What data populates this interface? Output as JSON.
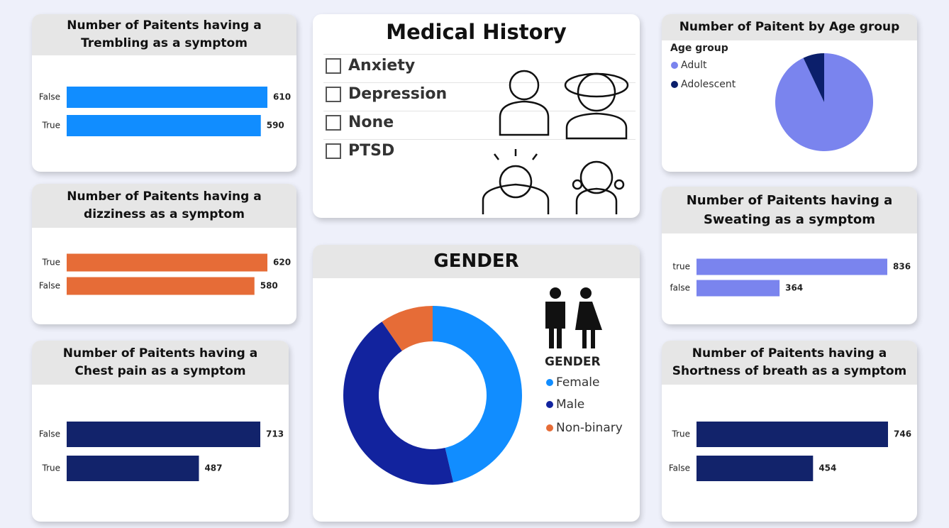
{
  "slicer": {
    "title": "Medical History",
    "items": [
      "Anxiety",
      "Depression",
      "None",
      "PTSD"
    ]
  },
  "chart_data": [
    {
      "type": "bar",
      "title": "Number of Paitents having a Trembling as a symptom",
      "categories": [
        "False",
        "True"
      ],
      "values": [
        610,
        590
      ],
      "color": "#118DFF"
    },
    {
      "type": "bar",
      "title": "Number of Paitents having a dizziness as a symptom",
      "categories": [
        "True",
        "False"
      ],
      "values": [
        620,
        580
      ],
      "color": "#E66C37"
    },
    {
      "type": "bar",
      "title": "Number of Paitents having a Chest pain as a symptom",
      "categories": [
        "False",
        "True"
      ],
      "values": [
        713,
        487
      ],
      "color": "#12236B"
    },
    {
      "type": "donut",
      "title": "GENDER",
      "legend_title": "GENDER",
      "categories": [
        "Female",
        "Male",
        "Non-binary"
      ],
      "values": [
        46.3,
        44.1,
        9.6
      ],
      "colors": [
        "#118DFF",
        "#12239E",
        "#E66C37"
      ]
    },
    {
      "type": "pie",
      "title": "Number of Paitent by Age group",
      "legend_title": "Age group",
      "categories": [
        "Adult",
        "Adolescent"
      ],
      "values": [
        93,
        7
      ],
      "colors": [
        "#7A84EE",
        "#0B1F6B"
      ]
    },
    {
      "type": "bar",
      "title": "Number of Paitents having a Sweating as a symptom",
      "categories": [
        "true",
        "false"
      ],
      "values": [
        836,
        364
      ],
      "color": "#7A84EE"
    },
    {
      "type": "bar",
      "title": "Number of Paitents having a Shortness of breath as a symptom",
      "categories": [
        "True",
        "False"
      ],
      "values": [
        746,
        454
      ],
      "color": "#12236B"
    }
  ]
}
